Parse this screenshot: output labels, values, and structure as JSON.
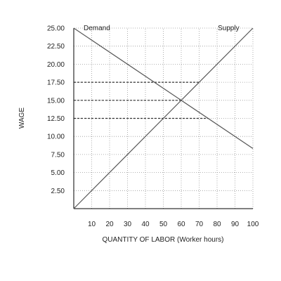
{
  "chart_data": {
    "type": "line",
    "xlabel": "QUANTITY OF LABOR (Worker hours)",
    "ylabel": "WAGE",
    "xlim": [
      0,
      100
    ],
    "ylim": [
      0,
      25
    ],
    "x_ticks": [
      10,
      20,
      30,
      40,
      50,
      60,
      70,
      80,
      90,
      100
    ],
    "x_tick_labels": [
      "10",
      "20",
      "30",
      "40",
      "50",
      "60",
      "70",
      "80",
      "90",
      "100"
    ],
    "y_ticks": [
      2.5,
      5,
      7.5,
      10,
      12.5,
      15,
      17.5,
      20,
      22.5,
      25
    ],
    "y_tick_labels": [
      "2.50",
      "5.00",
      "7.50",
      "10.00",
      "12.50",
      "15.00",
      "17.50",
      "20.00",
      "22.50",
      "25.00"
    ],
    "grid": true,
    "series": [
      {
        "name": "Demand",
        "x": [
          0,
          100
        ],
        "y": [
          25,
          8.33
        ],
        "color": "#555555"
      },
      {
        "name": "Supply",
        "x": [
          0,
          100
        ],
        "y": [
          0,
          25
        ],
        "color": "#555555"
      }
    ],
    "reference_lines": [
      {
        "y": 17.5,
        "x_from": 0,
        "x_to": 70
      },
      {
        "y": 15,
        "x_from": 0,
        "x_to": 60
      },
      {
        "y": 12.5,
        "x_from": 0,
        "x_to": 75
      }
    ]
  }
}
